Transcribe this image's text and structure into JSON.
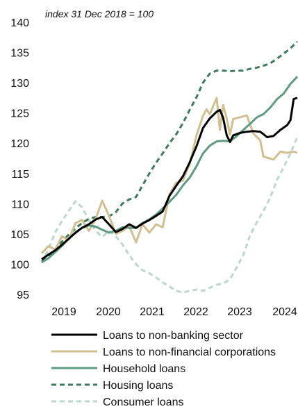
{
  "chart_data": {
    "type": "line",
    "subtitle": "index 31 Dec 2018 = 100",
    "ylim": [
      95,
      140
    ],
    "xlim": [
      2018.58,
      2024.33
    ],
    "yticks": [
      95,
      100,
      105,
      110,
      115,
      120,
      125,
      130,
      135,
      140
    ],
    "xticks": [
      {
        "label": "2019",
        "x": 2019.5
      },
      {
        "label": "2020",
        "x": 2020.5
      },
      {
        "label": "2021",
        "x": 2021.5
      },
      {
        "label": "2022",
        "x": 2022.5
      },
      {
        "label": "2023",
        "x": 2023.5
      },
      {
        "label": "2024",
        "x": 2024.2
      }
    ],
    "grid": false,
    "legend_position": "bottom",
    "series": [
      {
        "name": "Loans to non-banking sector",
        "color": "#000000",
        "dash": "solid",
        "points": [
          [
            2018.58,
            100.8
          ],
          [
            2018.75,
            101.6
          ],
          [
            2018.92,
            102.3
          ],
          [
            2019.08,
            103.2
          ],
          [
            2019.25,
            104.2
          ],
          [
            2019.42,
            105.2
          ],
          [
            2019.58,
            106.0
          ],
          [
            2019.75,
            106.6
          ],
          [
            2019.92,
            107.4
          ],
          [
            2020.08,
            107.8
          ],
          [
            2020.25,
            106.6
          ],
          [
            2020.42,
            105.3
          ],
          [
            2020.58,
            105.8
          ],
          [
            2020.75,
            106.6
          ],
          [
            2020.92,
            106.0
          ],
          [
            2021.08,
            106.7
          ],
          [
            2021.25,
            107.3
          ],
          [
            2021.42,
            108.0
          ],
          [
            2021.58,
            108.7
          ],
          [
            2021.75,
            111.3
          ],
          [
            2021.92,
            113.0
          ],
          [
            2022.08,
            114.5
          ],
          [
            2022.25,
            116.8
          ],
          [
            2022.42,
            119.5
          ],
          [
            2022.58,
            122.5
          ],
          [
            2022.75,
            124.1
          ],
          [
            2022.92,
            125.2
          ],
          [
            2023.0,
            125.5
          ],
          [
            2023.08,
            124.2
          ],
          [
            2023.17,
            121.3
          ],
          [
            2023.25,
            120.2
          ],
          [
            2023.33,
            121.3
          ],
          [
            2023.5,
            121.7
          ],
          [
            2023.67,
            121.9
          ],
          [
            2023.83,
            122.0
          ],
          [
            2024.0,
            121.9
          ],
          [
            2024.08,
            121.5
          ],
          [
            2024.17,
            121.0
          ],
          [
            2024.33,
            121.2
          ],
          [
            2024.5,
            122.2
          ],
          [
            2024.67,
            123.0
          ],
          [
            2024.75,
            123.8
          ],
          [
            2024.83,
            127.3
          ],
          [
            2024.92,
            127.5
          ]
        ]
      },
      {
        "name": "Loans to non-financial corporations",
        "color": "#d2bf90",
        "dash": "solid",
        "points": [
          [
            2018.58,
            101.8
          ],
          [
            2018.75,
            103.0
          ],
          [
            2018.92,
            102.4
          ],
          [
            2019.08,
            104.6
          ],
          [
            2019.25,
            104.0
          ],
          [
            2019.42,
            106.8
          ],
          [
            2019.58,
            107.3
          ],
          [
            2019.75,
            105.5
          ],
          [
            2019.92,
            107.5
          ],
          [
            2020.08,
            110.5
          ],
          [
            2020.25,
            108.0
          ],
          [
            2020.42,
            105.0
          ],
          [
            2020.58,
            105.5
          ],
          [
            2020.75,
            106.3
          ],
          [
            2020.92,
            103.6
          ],
          [
            2021.08,
            106.6
          ],
          [
            2021.25,
            105.2
          ],
          [
            2021.42,
            106.6
          ],
          [
            2021.58,
            106.1
          ],
          [
            2021.75,
            111.5
          ],
          [
            2021.92,
            113.5
          ],
          [
            2022.08,
            113.8
          ],
          [
            2022.25,
            116.5
          ],
          [
            2022.42,
            121.3
          ],
          [
            2022.58,
            124.5
          ],
          [
            2022.67,
            125.6
          ],
          [
            2022.75,
            124.8
          ],
          [
            2022.92,
            127.5
          ],
          [
            2023.0,
            122.2
          ],
          [
            2023.08,
            126.3
          ],
          [
            2023.17,
            124.1
          ],
          [
            2023.25,
            121.4
          ],
          [
            2023.33,
            124.0
          ],
          [
            2023.5,
            124.3
          ],
          [
            2023.67,
            124.6
          ],
          [
            2023.83,
            121.6
          ],
          [
            2024.0,
            120.5
          ],
          [
            2024.08,
            117.8
          ],
          [
            2024.17,
            117.6
          ],
          [
            2024.33,
            117.3
          ],
          [
            2024.5,
            118.6
          ],
          [
            2024.67,
            118.4
          ],
          [
            2024.83,
            118.6
          ],
          [
            2024.92,
            118.4
          ]
        ]
      },
      {
        "name": "Household loans",
        "color": "#5f9a82",
        "dash": "solid",
        "points": [
          [
            2018.58,
            100.3
          ],
          [
            2018.75,
            101.0
          ],
          [
            2018.92,
            102.0
          ],
          [
            2019.08,
            103.0
          ],
          [
            2019.25,
            104.2
          ],
          [
            2019.42,
            105.3
          ],
          [
            2019.58,
            106.0
          ],
          [
            2019.75,
            106.4
          ],
          [
            2019.92,
            106.2
          ],
          [
            2020.08,
            105.7
          ],
          [
            2020.25,
            105.2
          ],
          [
            2020.42,
            105.5
          ],
          [
            2020.58,
            106.1
          ],
          [
            2020.75,
            106.0
          ],
          [
            2020.92,
            106.0
          ],
          [
            2021.08,
            106.8
          ],
          [
            2021.25,
            107.4
          ],
          [
            2021.42,
            108.2
          ],
          [
            2021.58,
            109.2
          ],
          [
            2021.75,
            110.3
          ],
          [
            2021.92,
            111.5
          ],
          [
            2022.08,
            113.0
          ],
          [
            2022.25,
            114.3
          ],
          [
            2022.42,
            116.2
          ],
          [
            2022.58,
            118.3
          ],
          [
            2022.75,
            119.6
          ],
          [
            2022.92,
            120.3
          ],
          [
            2023.08,
            120.4
          ],
          [
            2023.25,
            120.3
          ],
          [
            2023.42,
            121.2
          ],
          [
            2023.58,
            122.2
          ],
          [
            2023.75,
            123.2
          ],
          [
            2023.92,
            124.3
          ],
          [
            2024.08,
            124.8
          ],
          [
            2024.25,
            125.9
          ],
          [
            2024.42,
            127.3
          ],
          [
            2024.58,
            128.2
          ],
          [
            2024.75,
            129.8
          ],
          [
            2024.92,
            131.0
          ]
        ]
      },
      {
        "name": "Housing loans",
        "color": "#3d7a5e",
        "dash": "dashed",
        "points": [
          [
            2018.58,
            100.5
          ],
          [
            2018.75,
            101.3
          ],
          [
            2018.92,
            102.5
          ],
          [
            2019.08,
            103.7
          ],
          [
            2019.25,
            104.9
          ],
          [
            2019.42,
            105.9
          ],
          [
            2019.58,
            106.8
          ],
          [
            2019.75,
            107.5
          ],
          [
            2019.92,
            107.8
          ],
          [
            2020.08,
            107.8
          ],
          [
            2020.25,
            107.9
          ],
          [
            2020.42,
            108.6
          ],
          [
            2020.58,
            110.0
          ],
          [
            2020.75,
            110.7
          ],
          [
            2020.92,
            111.1
          ],
          [
            2021.08,
            113.0
          ],
          [
            2021.25,
            115.0
          ],
          [
            2021.42,
            116.8
          ],
          [
            2021.58,
            118.3
          ],
          [
            2021.75,
            120.0
          ],
          [
            2021.92,
            121.5
          ],
          [
            2022.08,
            123.3
          ],
          [
            2022.25,
            125.5
          ],
          [
            2022.42,
            127.6
          ],
          [
            2022.58,
            130.0
          ],
          [
            2022.75,
            131.5
          ],
          [
            2022.92,
            132.0
          ],
          [
            2023.08,
            132.0
          ],
          [
            2023.25,
            131.9
          ],
          [
            2023.42,
            132.0
          ],
          [
            2023.58,
            132.0
          ],
          [
            2023.75,
            132.3
          ],
          [
            2023.92,
            132.5
          ],
          [
            2024.08,
            132.8
          ],
          [
            2024.25,
            133.2
          ],
          [
            2024.42,
            134.0
          ],
          [
            2024.58,
            134.8
          ],
          [
            2024.75,
            135.7
          ],
          [
            2024.92,
            136.8
          ]
        ]
      },
      {
        "name": "Consumer loans",
        "color": "#bcd7cb",
        "dash": "dashed",
        "points": [
          [
            2018.58,
            100.2
          ],
          [
            2018.75,
            102.5
          ],
          [
            2018.92,
            105.3
          ],
          [
            2019.08,
            107.1
          ],
          [
            2019.25,
            108.8
          ],
          [
            2019.42,
            110.4
          ],
          [
            2019.58,
            109.4
          ],
          [
            2019.75,
            107.3
          ],
          [
            2019.92,
            105.5
          ],
          [
            2020.08,
            104.5
          ],
          [
            2020.25,
            105.5
          ],
          [
            2020.42,
            104.6
          ],
          [
            2020.58,
            103.3
          ],
          [
            2020.75,
            101.5
          ],
          [
            2020.92,
            100.0
          ],
          [
            2021.08,
            99.0
          ],
          [
            2021.25,
            98.5
          ],
          [
            2021.42,
            97.8
          ],
          [
            2021.58,
            97.0
          ],
          [
            2021.75,
            96.3
          ],
          [
            2021.92,
            95.6
          ],
          [
            2022.08,
            95.3
          ],
          [
            2022.25,
            95.6
          ],
          [
            2022.42,
            95.8
          ],
          [
            2022.58,
            95.6
          ],
          [
            2022.75,
            96.1
          ],
          [
            2022.92,
            96.6
          ],
          [
            2023.08,
            96.8
          ],
          [
            2023.25,
            97.5
          ],
          [
            2023.42,
            99.5
          ],
          [
            2023.58,
            101.5
          ],
          [
            2023.75,
            104.8
          ],
          [
            2023.92,
            107.0
          ],
          [
            2024.08,
            108.8
          ],
          [
            2024.25,
            111.0
          ],
          [
            2024.42,
            114.0
          ],
          [
            2024.58,
            116.0
          ],
          [
            2024.75,
            118.3
          ],
          [
            2024.92,
            121.0
          ]
        ]
      }
    ]
  }
}
